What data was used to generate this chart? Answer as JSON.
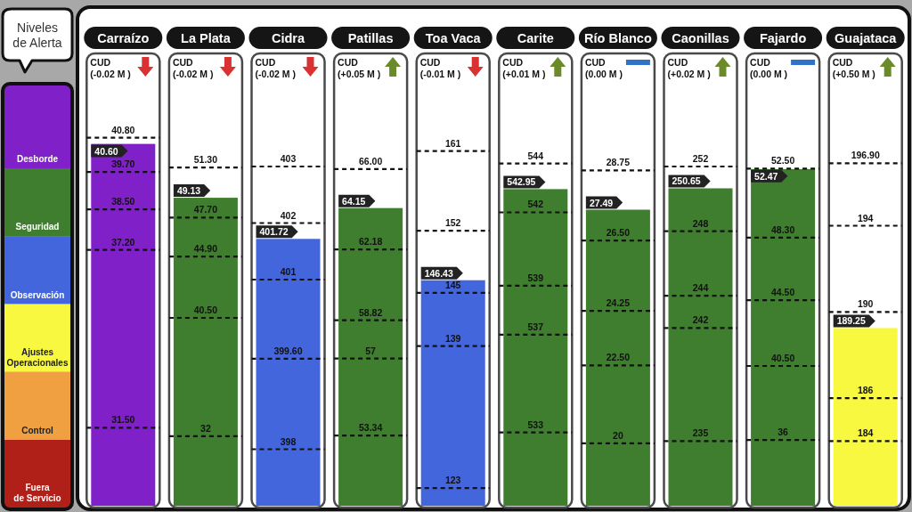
{
  "chart_data": [
    {
      "type": "other",
      "title": "Niveles de Alerta",
      "categories": [
        "Desborde",
        "Seguridad",
        "Observación",
        "Ajustes Operacionales",
        "Control",
        "Fuera de Servicio"
      ],
      "colors": [
        "#8020c8",
        "#3e7e2e",
        "#4466dd",
        "#f8f840",
        "#f0a040",
        "#b02018"
      ]
    },
    {
      "type": "bar",
      "title": "Carraízo",
      "annotations": [
        "CUD",
        "(-0.02 M )"
      ],
      "categories": [
        null
      ],
      "values": [
        40.6
      ],
      "value_labels": [
        "40.60"
      ],
      "colors": [
        "#8020c8"
      ],
      "ylim": [
        29,
        43.5
      ],
      "ref_lines": [
        {
          "axis": "y",
          "value": 40.8,
          "label": "40.80",
          "line_style": "dashed"
        },
        {
          "axis": "y",
          "value": 39.7,
          "label": "39.70",
          "line_style": "dashed"
        },
        {
          "axis": "y",
          "value": 38.5,
          "label": "38.50",
          "line_style": "dashed"
        },
        {
          "axis": "y",
          "value": 37.2,
          "label": "37.20",
          "line_style": "dashed"
        },
        {
          "axis": "y",
          "value": 31.5,
          "label": "31.50",
          "line_style": "dashed"
        }
      ]
    },
    {
      "type": "bar",
      "title": "La Plata",
      "annotations": [
        "CUD",
        "(-0.02 M )"
      ],
      "categories": [
        null
      ],
      "values": [
        49.13
      ],
      "value_labels": [
        "49.13"
      ],
      "colors": [
        "#3e7e2e"
      ],
      "ylim": [
        27,
        59.5
      ],
      "ref_lines": [
        {
          "axis": "y",
          "value": 51.3,
          "label": "51.30",
          "line_style": "dashed"
        },
        {
          "axis": "y",
          "value": 47.7,
          "label": "47.70",
          "line_style": "dashed"
        },
        {
          "axis": "y",
          "value": 44.9,
          "label": "44.90",
          "line_style": "dashed"
        },
        {
          "axis": "y",
          "value": 40.5,
          "label": "40.50",
          "line_style": "dashed"
        },
        {
          "axis": "y",
          "value": 32,
          "label": "32",
          "line_style": "dashed"
        }
      ]
    },
    {
      "type": "bar",
      "title": "Cidra",
      "annotations": [
        "CUD",
        "(-0.02 M )"
      ],
      "categories": [
        null
      ],
      "values": [
        401.72
      ],
      "value_labels": [
        "401.72"
      ],
      "colors": [
        "#4466dd"
      ],
      "ylim": [
        397,
        405
      ],
      "ref_lines": [
        {
          "axis": "y",
          "value": 403,
          "label": "403",
          "line_style": "dashed"
        },
        {
          "axis": "y",
          "value": 402,
          "label": "402",
          "line_style": "dashed"
        },
        {
          "axis": "y",
          "value": 401,
          "label": "401",
          "line_style": "dashed"
        },
        {
          "axis": "y",
          "value": 399.6,
          "label": "399.60",
          "line_style": "dashed"
        },
        {
          "axis": "y",
          "value": 398,
          "label": "398",
          "line_style": "dashed"
        }
      ]
    },
    {
      "type": "bar",
      "title": "Patillas",
      "annotations": [
        "CUD",
        "(+0.05 M )"
      ],
      "categories": [
        null
      ],
      "values": [
        64.15
      ],
      "value_labels": [
        "64.15"
      ],
      "colors": [
        "#3e7e2e"
      ],
      "ylim": [
        50,
        71.5
      ],
      "ref_lines": [
        {
          "axis": "y",
          "value": 66,
          "label": "66.00",
          "line_style": "dashed"
        },
        {
          "axis": "y",
          "value": 62.18,
          "label": "62.18",
          "line_style": "dashed"
        },
        {
          "axis": "y",
          "value": 58.82,
          "label": "58.82",
          "line_style": "dashed"
        },
        {
          "axis": "y",
          "value": 57,
          "label": "57",
          "line_style": "dashed"
        },
        {
          "axis": "y",
          "value": 53.34,
          "label": "53.34",
          "line_style": "dashed"
        }
      ]
    },
    {
      "type": "bar",
      "title": "Toa Vaca",
      "annotations": [
        "CUD",
        "(-0.01 M )"
      ],
      "categories": [
        null
      ],
      "values": [
        146.43
      ],
      "value_labels": [
        "146.43"
      ],
      "colors": [
        "#4466dd"
      ],
      "ylim": [
        121,
        172
      ],
      "ref_lines": [
        {
          "axis": "y",
          "value": 161,
          "label": "161",
          "line_style": "dashed"
        },
        {
          "axis": "y",
          "value": 152,
          "label": "152",
          "line_style": "dashed"
        },
        {
          "axis": "y",
          "value": 145,
          "label": "145",
          "line_style": "dashed"
        },
        {
          "axis": "y",
          "value": 139,
          "label": "139",
          "line_style": "dashed"
        },
        {
          "axis": "y",
          "value": 123,
          "label": "123",
          "line_style": "dashed"
        }
      ]
    },
    {
      "type": "bar",
      "title": "Carite",
      "annotations": [
        "CUD",
        "(+0.01 M )"
      ],
      "categories": [
        null
      ],
      "values": [
        542.95
      ],
      "value_labels": [
        "542.95"
      ],
      "colors": [
        "#3e7e2e"
      ],
      "ylim": [
        530,
        548.5
      ],
      "ref_lines": [
        {
          "axis": "y",
          "value": 544,
          "label": "544",
          "line_style": "dashed"
        },
        {
          "axis": "y",
          "value": 542,
          "label": "542",
          "line_style": "dashed"
        },
        {
          "axis": "y",
          "value": 539,
          "label": "539",
          "line_style": "dashed"
        },
        {
          "axis": "y",
          "value": 537,
          "label": "537",
          "line_style": "dashed"
        },
        {
          "axis": "y",
          "value": 533,
          "label": "533",
          "line_style": "dashed"
        }
      ]
    },
    {
      "type": "bar",
      "title": "Río Blanco",
      "annotations": [
        "CUD",
        "(0.00 M )"
      ],
      "categories": [
        null
      ],
      "values": [
        27.49
      ],
      "value_labels": [
        "27.49"
      ],
      "colors": [
        "#3e7e2e"
      ],
      "ylim": [
        18,
        32.5
      ],
      "ref_lines": [
        {
          "axis": "y",
          "value": 28.75,
          "label": "28.75",
          "line_style": "dashed"
        },
        {
          "axis": "y",
          "value": 26.5,
          "label": "26.50",
          "line_style": "dashed"
        },
        {
          "axis": "y",
          "value": 24.25,
          "label": "24.25",
          "line_style": "dashed"
        },
        {
          "axis": "y",
          "value": 22.5,
          "label": "22.50",
          "line_style": "dashed"
        },
        {
          "axis": "y",
          "value": 20,
          "label": "20",
          "line_style": "dashed"
        }
      ]
    },
    {
      "type": "bar",
      "title": "Caonillas",
      "annotations": [
        "CUD",
        "(+0.02 M )"
      ],
      "categories": [
        null
      ],
      "values": [
        250.65
      ],
      "value_labels": [
        "250.65"
      ],
      "colors": [
        "#3e7e2e"
      ],
      "ylim": [
        231,
        259
      ],
      "ref_lines": [
        {
          "axis": "y",
          "value": 252,
          "label": "252",
          "line_style": "dashed"
        },
        {
          "axis": "y",
          "value": 248,
          "label": "248",
          "line_style": "dashed"
        },
        {
          "axis": "y",
          "value": 244,
          "label": "244",
          "line_style": "dashed"
        },
        {
          "axis": "y",
          "value": 242,
          "label": "242",
          "line_style": "dashed"
        },
        {
          "axis": "y",
          "value": 235,
          "label": "235",
          "line_style": "dashed"
        }
      ]
    },
    {
      "type": "bar",
      "title": "Fajardo",
      "annotations": [
        "CUD",
        "(0.00 M )"
      ],
      "categories": [
        null
      ],
      "values": [
        52.47
      ],
      "value_labels": [
        "52.47"
      ],
      "colors": [
        "#3e7e2e"
      ],
      "ylim": [
        32,
        59.5
      ],
      "ref_lines": [
        {
          "axis": "y",
          "value": 52.5,
          "label": "52.50",
          "line_style": "dashed"
        },
        {
          "axis": "y",
          "value": 48.3,
          "label": "48.30",
          "line_style": "dashed"
        },
        {
          "axis": "y",
          "value": 44.5,
          "label": "44.50",
          "line_style": "dashed"
        },
        {
          "axis": "y",
          "value": 40.5,
          "label": "40.50",
          "line_style": "dashed"
        },
        {
          "axis": "y",
          "value": 36,
          "label": "36",
          "line_style": "dashed"
        }
      ]
    },
    {
      "type": "bar",
      "title": "Guajataca",
      "annotations": [
        "CUD",
        "(+0.50 M )"
      ],
      "categories": [
        null
      ],
      "values": [
        189.25
      ],
      "value_labels": [
        "189.25"
      ],
      "colors": [
        "#f8f840"
      ],
      "ylim": [
        181,
        202
      ],
      "ref_lines": [
        {
          "axis": "y",
          "value": 196.9,
          "label": "196.90",
          "line_style": "dashed"
        },
        {
          "axis": "y",
          "value": 194,
          "label": "194",
          "line_style": "dashed"
        },
        {
          "axis": "y",
          "value": 190,
          "label": "190",
          "line_style": "dashed"
        },
        {
          "axis": "y",
          "value": 186,
          "label": "186",
          "line_style": "dashed"
        },
        {
          "axis": "y",
          "value": 184,
          "label": "184",
          "line_style": "dashed"
        }
      ]
    }
  ]
}
